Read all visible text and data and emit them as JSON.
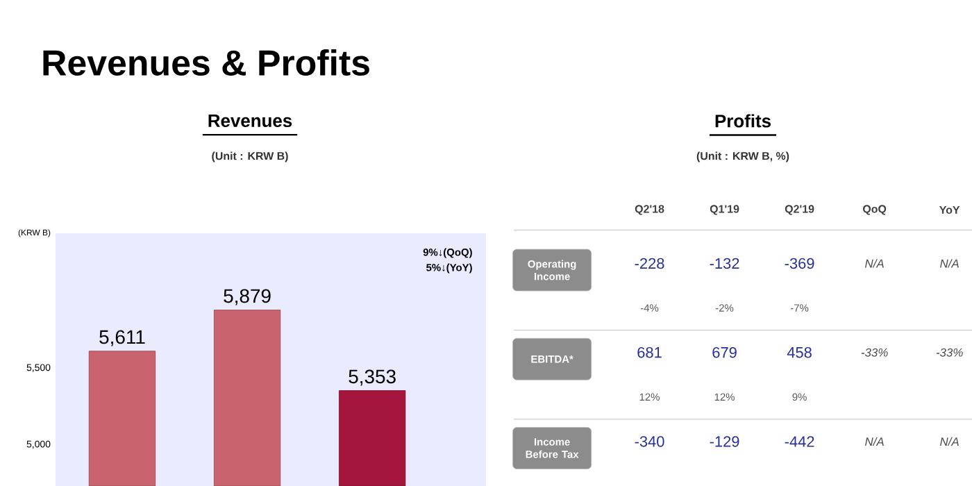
{
  "chart_data": [
    {
      "type": "bar",
      "title": "Revenues",
      "subtitle": "(Unit : KRW B)",
      "ylabel": "(KRW B)",
      "categories": [
        null,
        null,
        null
      ],
      "values": [
        5611,
        5879,
        5353
      ],
      "value_labels": [
        "5,611",
        "5,879",
        "5,353"
      ],
      "colors": [
        "#c9646e",
        "#c9646e",
        "#a5163f"
      ],
      "ylim": [
        4730,
        6380
      ],
      "yticks": [
        {
          "value": 5000,
          "label": "5,000"
        },
        {
          "value": 5500,
          "label": "5,500"
        }
      ],
      "annotations": [
        "Revenues & Profits",
        "9%↓(QoQ)",
        "5%↓(YoY)"
      ]
    },
    {
      "type": "other",
      "title": "Profits",
      "subtitle": "(Unit : KRW B, %)",
      "categories": [
        "Q2'18",
        "Q1'19",
        "Q2'19",
        "QoQ",
        "YoY"
      ],
      "y_categories": [
        "Operating Income",
        null,
        "EBITDA*",
        null,
        "Income Before Tax"
      ],
      "cell_labels": [
        [
          "-228",
          "-132",
          "-369",
          "N/A",
          "N/A"
        ],
        [
          "-4%",
          "-2%",
          "-7%",
          null,
          null
        ],
        [
          "681",
          "679",
          "458",
          "-33%",
          "-33%"
        ],
        [
          "12%",
          "12%",
          "9%",
          null,
          null
        ],
        [
          "-340",
          "-129",
          "-442",
          "N/A",
          "N/A"
        ]
      ]
    }
  ]
}
